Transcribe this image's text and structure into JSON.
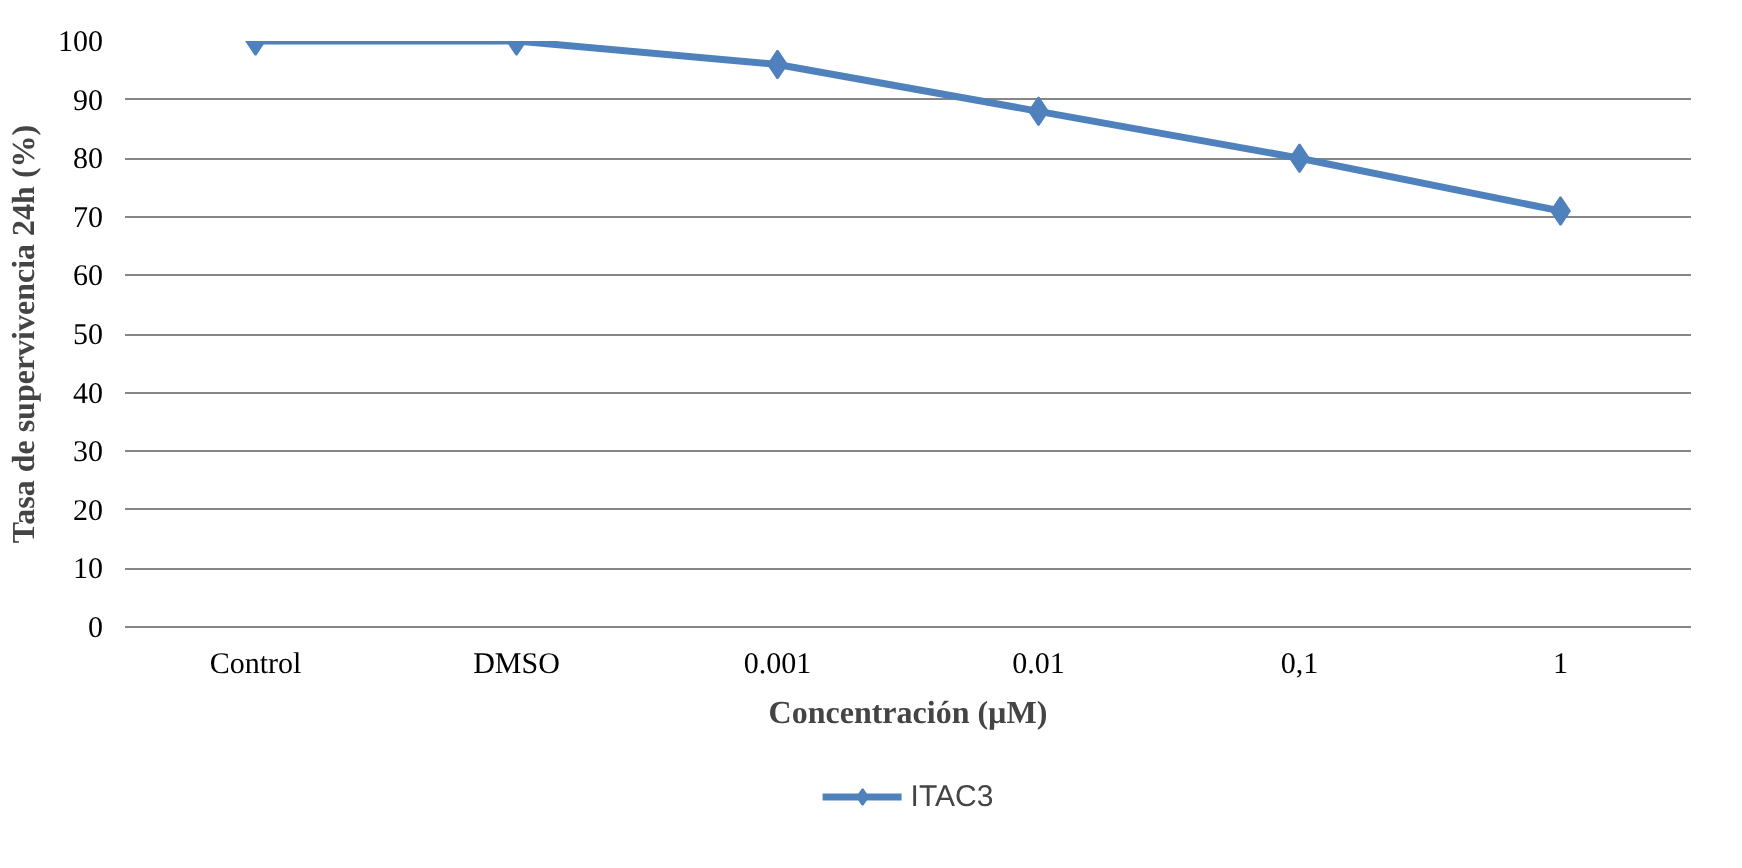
{
  "chart_data": {
    "type": "line",
    "xlabel": "Concentración (µM)",
    "ylabel": "Tasa de supervivencia 24h (%)",
    "categories": [
      "Control",
      "DMSO",
      "0.001",
      "0.01",
      "0,1",
      "1"
    ],
    "series": [
      {
        "name": "ITAC3",
        "color": "#4f81bd",
        "values": [
          100,
          100,
          96,
          88,
          80,
          71
        ]
      }
    ],
    "ylim": [
      0,
      100
    ],
    "yticks": [
      0,
      10,
      20,
      30,
      40,
      50,
      60,
      70,
      80,
      90,
      100
    ],
    "grid": "y",
    "legend": "bottom",
    "marker": "diamond",
    "line_style": "solid"
  }
}
